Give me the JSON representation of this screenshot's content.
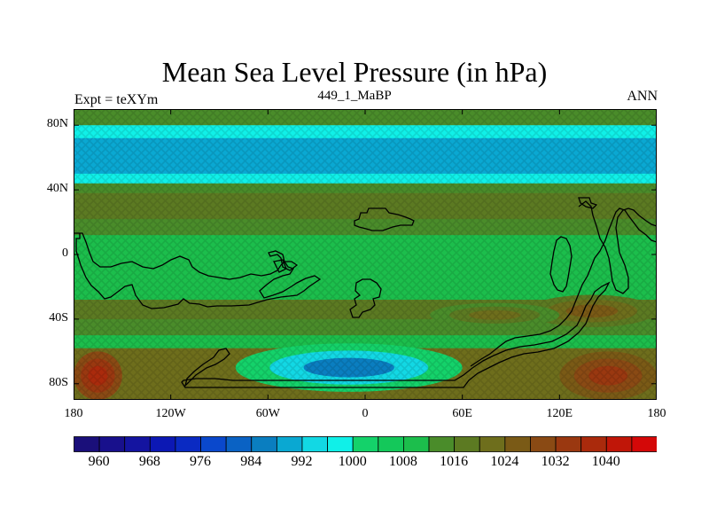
{
  "title": "Mean Sea Level Pressure (in hPa)",
  "left_string": "Expt = teXYm",
  "center_string": "449_1_MaBP",
  "right_string": "ANN",
  "map": {
    "projection": "cylindrical-equidistant",
    "lon_range": [
      -180,
      180
    ],
    "lat_range": [
      -90,
      90
    ],
    "lat_ticks": [
      "80N",
      "40N",
      "0",
      "40S",
      "80S"
    ],
    "lon_ticks": [
      "180",
      "120W",
      "60W",
      "0",
      "60E",
      "120E",
      "180"
    ],
    "lat_tick_values": [
      80,
      40,
      0,
      -40,
      -80
    ],
    "lon_tick_values": [
      -180,
      -120,
      -60,
      0,
      60,
      120,
      180
    ]
  },
  "colorbar": {
    "tick_labels": [
      "960",
      "968",
      "976",
      "984",
      "992",
      "1000",
      "1008",
      "1016",
      "1024",
      "1032",
      "1040"
    ],
    "levels": [
      956,
      960,
      964,
      968,
      972,
      976,
      980,
      984,
      988,
      992,
      996,
      1000,
      1004,
      1008,
      1012,
      1016,
      1020,
      1024,
      1028,
      1032,
      1036,
      1040,
      1044
    ],
    "colors": [
      "#1a0f7a",
      "#18108c",
      "#1414a0",
      "#0c18b4",
      "#0a2ac2",
      "#0a48cc",
      "#0a62c4",
      "#0a7ec0",
      "#0aa8d2",
      "#12d8e4",
      "#10f0e8",
      "#14d26a",
      "#14c85a",
      "#1cbe4c",
      "#4a8c2a",
      "#5c7a22",
      "#6e6e1c",
      "#7a5a16",
      "#8a4a14",
      "#9a3810",
      "#aa2a0c",
      "#c01608",
      "#d40808"
    ]
  },
  "chart_data": {
    "type": "heatmap",
    "title": "Mean Sea Level Pressure (in hPa)",
    "units": "hPa",
    "x_range": [
      -180,
      180
    ],
    "y_range": [
      -90,
      90
    ],
    "zonal_bands": [
      {
        "lat_from": 90,
        "lat_to": 80,
        "value": 1012
      },
      {
        "lat_from": 80,
        "lat_to": 72,
        "value": 998
      },
      {
        "lat_from": 72,
        "lat_to": 60,
        "value": 990
      },
      {
        "lat_from": 60,
        "lat_to": 50,
        "value": 988
      },
      {
        "lat_from": 50,
        "lat_to": 44,
        "value": 998
      },
      {
        "lat_from": 44,
        "lat_to": 38,
        "value": 1014
      },
      {
        "lat_from": 38,
        "lat_to": 22,
        "value": 1018
      },
      {
        "lat_from": 22,
        "lat_to": 12,
        "value": 1014
      },
      {
        "lat_from": 12,
        "lat_to": -28,
        "value": 1009
      },
      {
        "lat_from": -28,
        "lat_to": -40,
        "value": 1017
      },
      {
        "lat_from": -40,
        "lat_to": -50,
        "value": 1012
      },
      {
        "lat_from": -50,
        "lat_to": -58,
        "value": 1008
      },
      {
        "lat_from": -58,
        "lat_to": -90,
        "value": 1020
      }
    ],
    "regional_features": [
      {
        "name": "low",
        "lon": [
          -80,
          60
        ],
        "lat": [
          -55,
          -85
        ],
        "center_value": 986
      },
      {
        "name": "high",
        "lon": [
          -180,
          -150
        ],
        "lat": [
          -60,
          -90
        ],
        "center_value": 1036
      },
      {
        "name": "high",
        "lon": [
          120,
          180
        ],
        "lat": [
          -60,
          -90
        ],
        "center_value": 1034
      },
      {
        "name": "high",
        "lon": [
          100,
          180
        ],
        "lat": [
          -25,
          -45
        ],
        "center_value": 1024
      },
      {
        "name": "high",
        "lon": [
          40,
          120
        ],
        "lat": [
          -30,
          -45
        ],
        "center_value": 1020
      }
    ]
  }
}
